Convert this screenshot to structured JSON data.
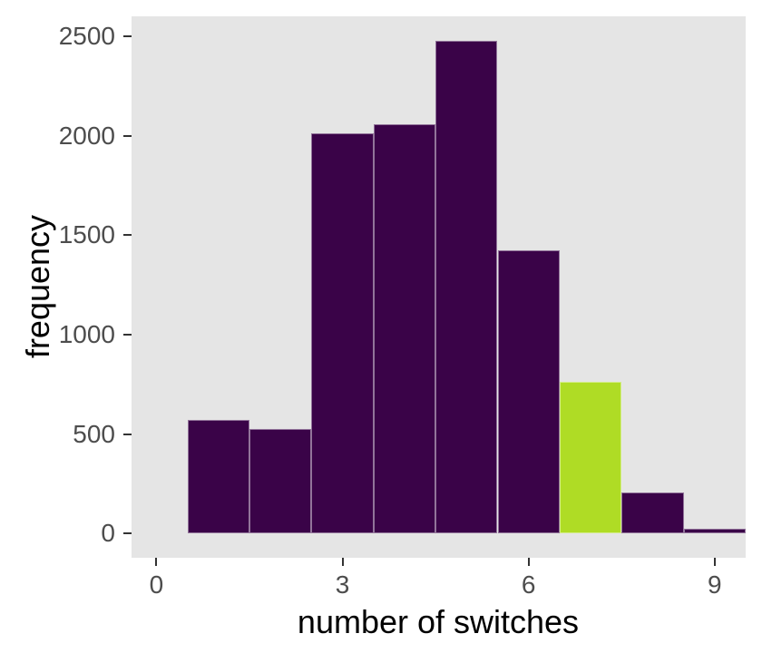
{
  "figure": {
    "xlabel": "number of switches",
    "ylabel": "frequency"
  },
  "chart_data": {
    "type": "bar",
    "subtype": "histogram",
    "title": "",
    "xlabel": "number of switches",
    "ylabel": "frequency",
    "bin_centers": [
      1,
      2,
      3,
      4,
      5,
      6,
      7,
      8,
      9
    ],
    "values": [
      570,
      525,
      2015,
      2060,
      2480,
      1425,
      765,
      205,
      25
    ],
    "binwidth": 1,
    "highlighted_bin": 7,
    "x_ticks": [
      0,
      3,
      6,
      9
    ],
    "y_ticks": [
      0,
      500,
      1000,
      1500,
      2000,
      2500
    ],
    "xlim": [
      -0.4,
      9.5
    ],
    "ylim": [
      -122,
      2601
    ],
    "grid": false,
    "legend": false,
    "colors": {
      "bar_fill": "#3A0348",
      "highlight_fill": "#AFDC25",
      "panel_background": "#E5E5E5",
      "tick_text": "#4D4D4D",
      "axis_title_text": "#000000",
      "tick_mark": "#333333"
    }
  }
}
